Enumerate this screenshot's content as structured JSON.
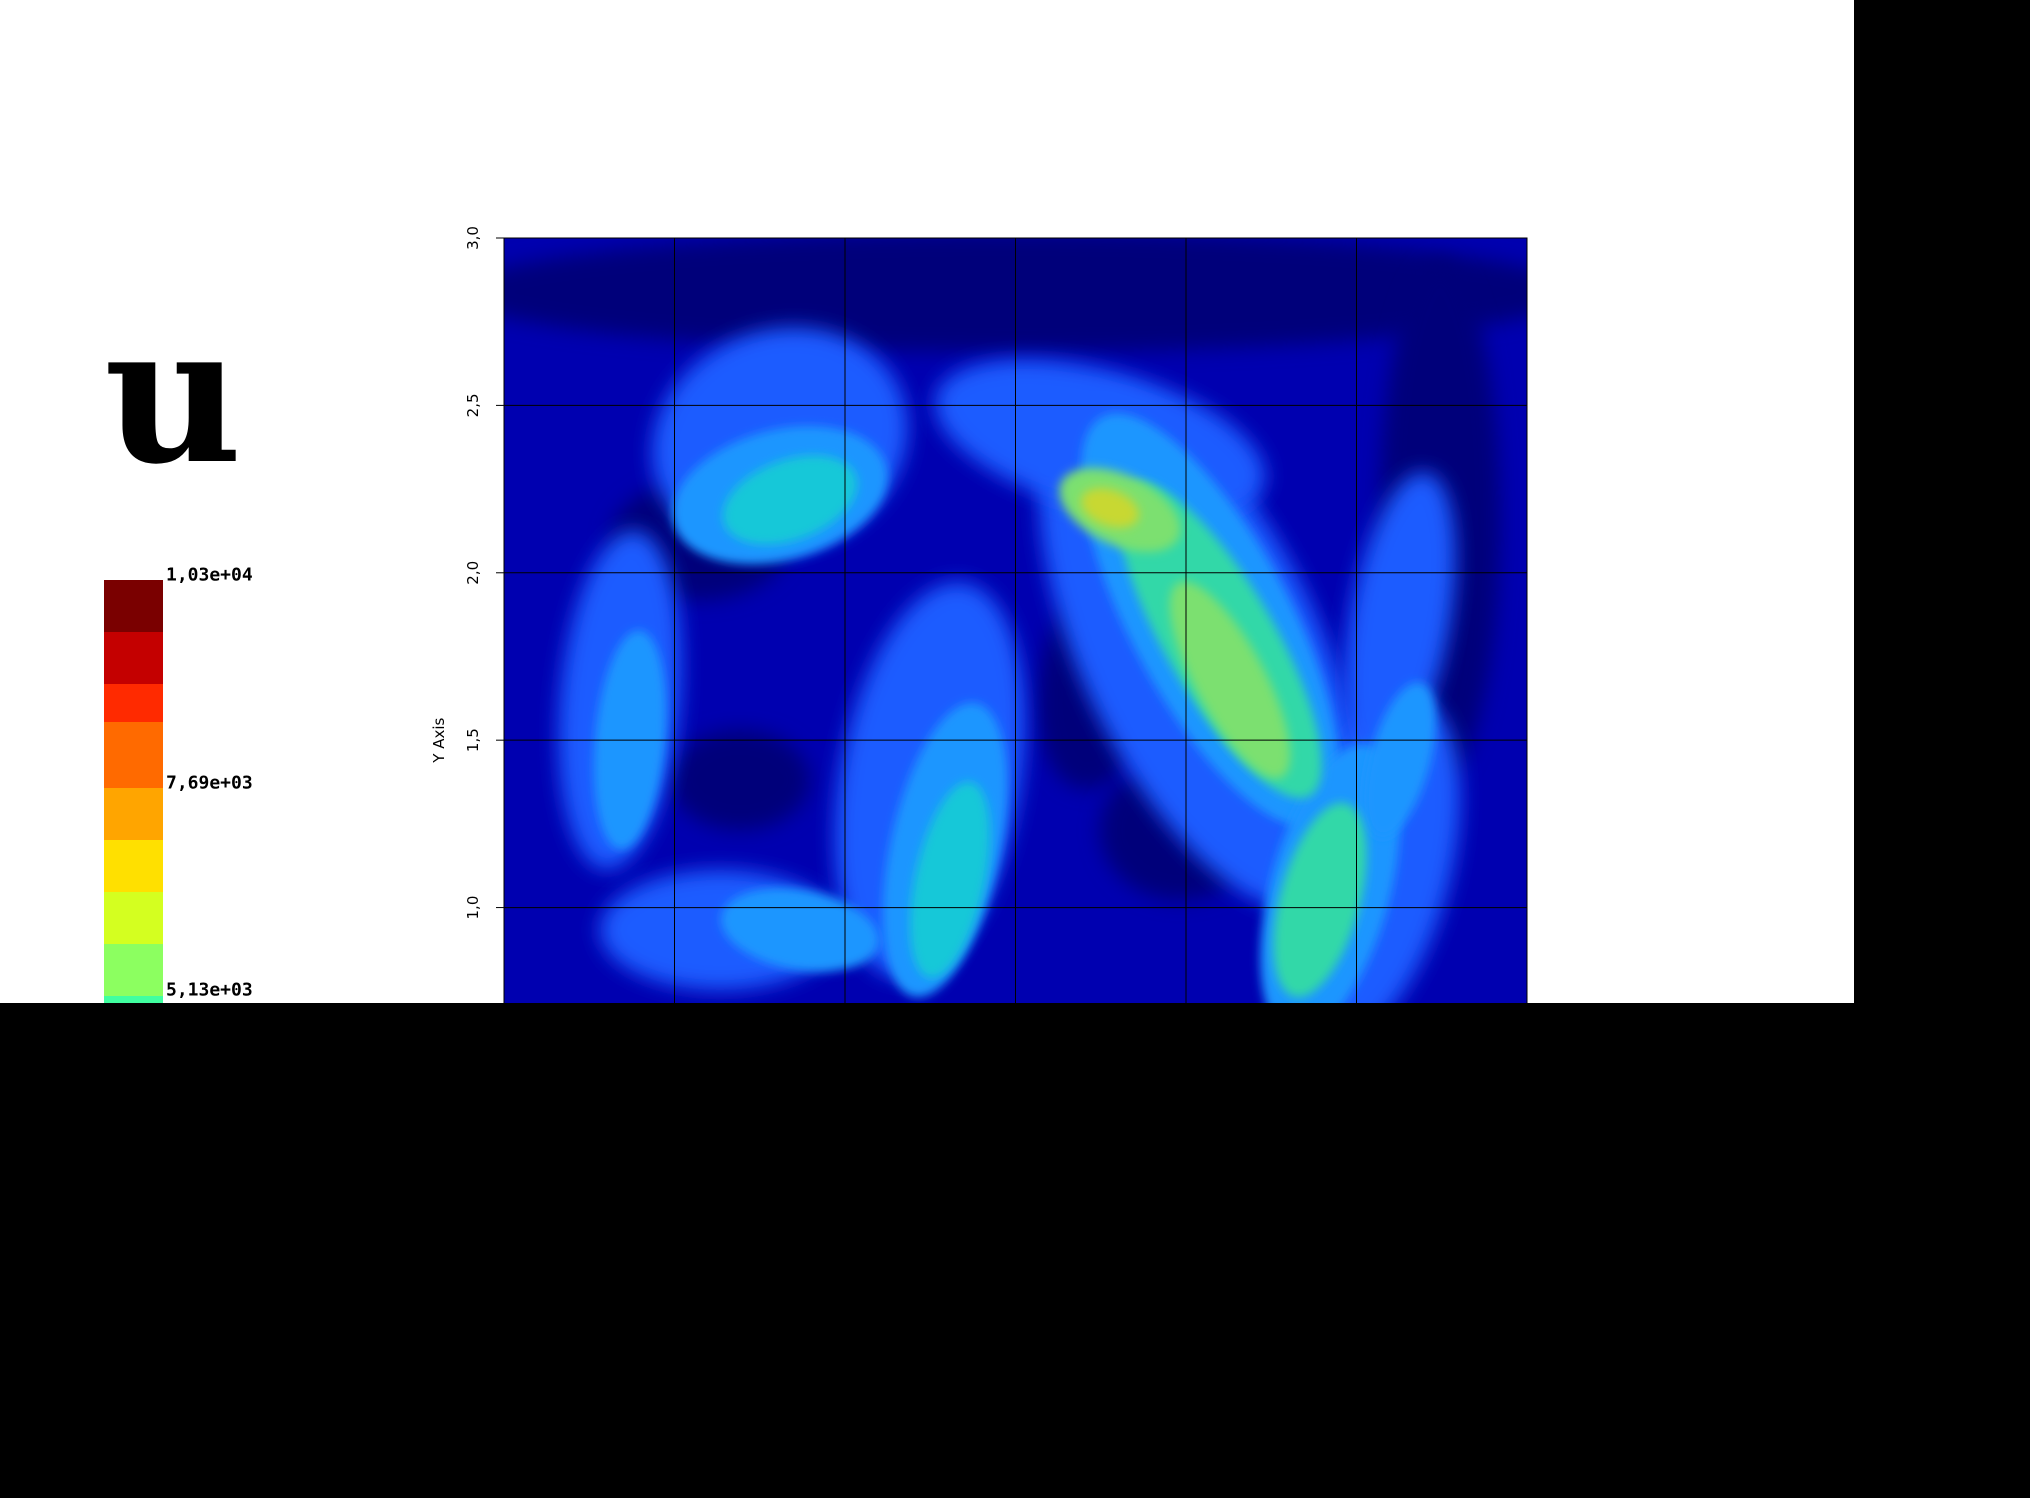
{
  "variable_title": "u",
  "colorbar": {
    "labels": [
      "1,03e+04",
      "7,69e+03",
      "5,13e+03"
    ],
    "label_values": [
      10300,
      7690,
      5130
    ],
    "colors": [
      "#7a0000",
      "#c40000",
      "#ff2a00",
      "#ff6a00",
      "#ffa500",
      "#ffe000",
      "#d4ff20",
      "#8cff60",
      "#40ffa0"
    ]
  },
  "chart_data": {
    "type": "heatmap",
    "title": "",
    "xlabel": "",
    "ylabel": "Y Axis",
    "ylim": [
      0.7,
      3.0
    ],
    "yticks": [
      1.0,
      1.5,
      2.0,
      2.5,
      3.0
    ],
    "ytick_labels": [
      "1,0",
      "1,5",
      "2,0",
      "2,5",
      "3,0"
    ],
    "grid": true,
    "grid_columns": 6,
    "colormap": [
      "#00007a",
      "#0000b0",
      "#0a28e0",
      "#1a5cff",
      "#1e96ff",
      "#18c8d8",
      "#30d8a8",
      "#7ce070",
      "#c8d830"
    ],
    "field_regions": [
      {
        "name": "upper-left arc",
        "x": 0.33,
        "y": 2.25,
        "level": 5
      },
      {
        "name": "upper-center plume",
        "x": 0.95,
        "y": 2.2,
        "level": 8
      },
      {
        "name": "right diagonal band",
        "x": 1.05,
        "y": 1.8,
        "level": 7
      },
      {
        "name": "right lower band",
        "x": 1.18,
        "y": 1.05,
        "level": 6
      },
      {
        "name": "center-left column",
        "x": 0.57,
        "y": 1.2,
        "level": 5
      },
      {
        "name": "lower-left blob",
        "x": 0.28,
        "y": 0.95,
        "level": 5
      }
    ]
  }
}
